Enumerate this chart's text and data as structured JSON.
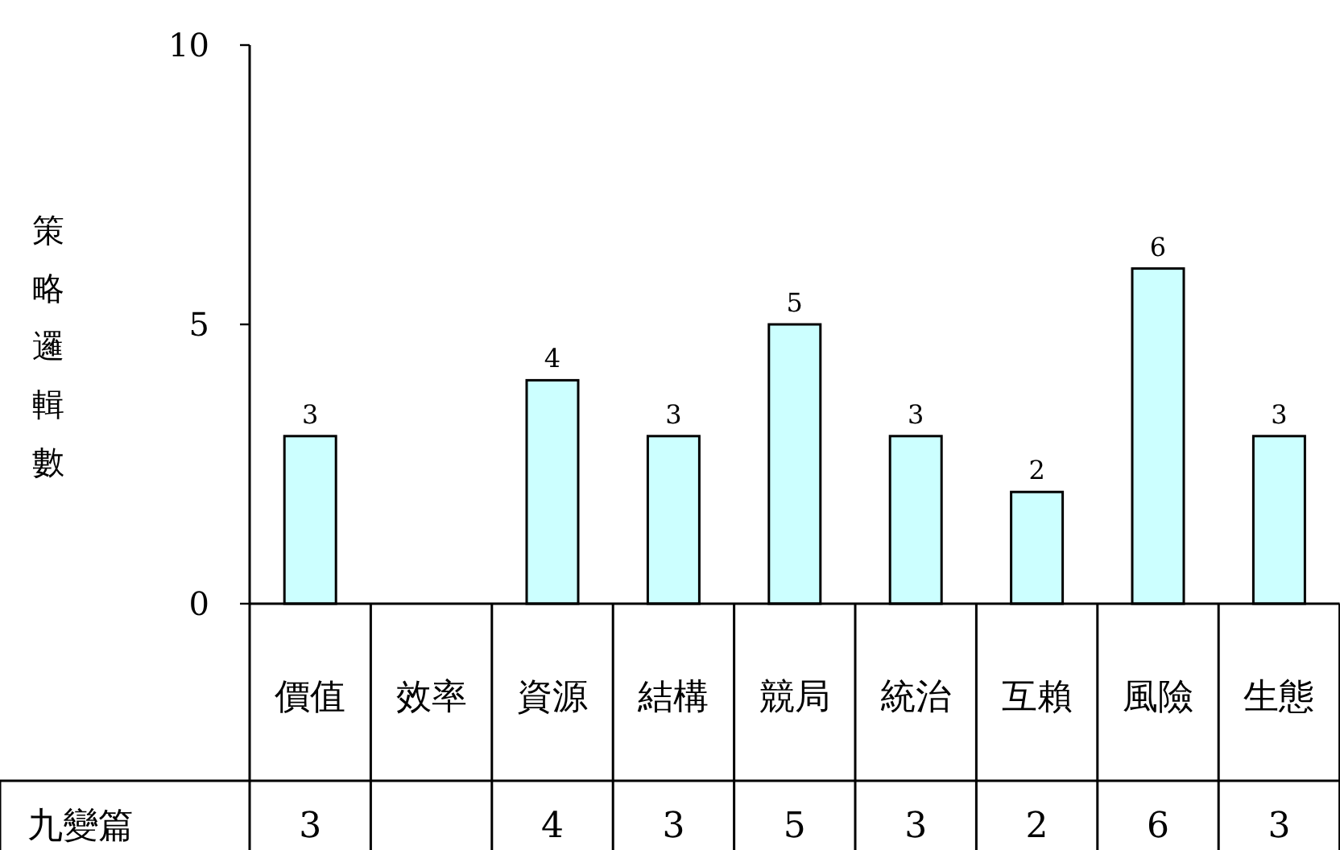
{
  "chart_data": {
    "type": "bar",
    "ylabel": "策略邏輯數",
    "categories": [
      "價值",
      "效率",
      "資源",
      "結構",
      "競局",
      "統治",
      "互賴",
      "風險",
      "生態"
    ],
    "series": [
      {
        "name": "九變篇",
        "color": "#ccffff",
        "values": [
          3,
          null,
          4,
          3,
          5,
          3,
          2,
          6,
          3
        ]
      }
    ],
    "annotations": [
      {
        "text": "3",
        "x": "價值",
        "y": 3
      },
      {
        "text": "4",
        "x": "資源",
        "y": 4
      },
      {
        "text": "3",
        "x": "結構",
        "y": 3
      },
      {
        "text": "5",
        "x": "競局",
        "y": 5
      },
      {
        "text": "3",
        "x": "統治",
        "y": 3
      },
      {
        "text": "2",
        "x": "互賴",
        "y": 2
      },
      {
        "text": "6",
        "x": "風險",
        "y": 6
      },
      {
        "text": "3",
        "x": "生態",
        "y": 3
      }
    ],
    "ylim": [
      0,
      10
    ],
    "yticks": [
      0,
      5,
      10
    ],
    "data_labels": true,
    "grid": false
  }
}
